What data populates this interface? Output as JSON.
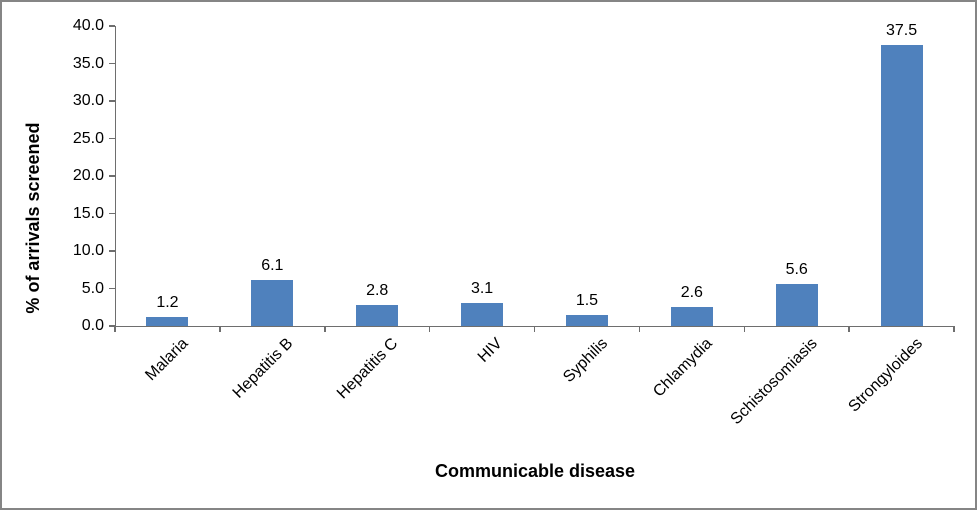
{
  "chart_data": {
    "type": "bar",
    "categories": [
      "Malaria",
      "Hepatitis B",
      "Hepatitis C",
      "HIV",
      "Syphilis",
      "Chlamydia",
      "Schistosomiasis",
      "Strongyloides"
    ],
    "values": [
      1.2,
      6.1,
      2.8,
      3.1,
      1.5,
      2.6,
      5.6,
      37.5
    ],
    "value_labels": [
      "1.2",
      "6.1",
      "2.8",
      "3.1",
      "1.5",
      "2.6",
      "5.6",
      "37.5"
    ],
    "title": "",
    "xlabel": "Communicable disease",
    "ylabel": "% of arrivals screened",
    "ylim": [
      0,
      40
    ],
    "ytick_step": 5,
    "ytick_labels": [
      "0.0",
      "5.0",
      "10.0",
      "15.0",
      "20.0",
      "25.0",
      "30.0",
      "35.0",
      "40.0"
    ],
    "grid": false,
    "legend": false,
    "label_rotation_deg": -45,
    "colors": {
      "bar": "#4F81BD",
      "axis": "#6E6E6E",
      "text": "#000000",
      "frame_border": "#858585",
      "background": "#FFFFFF"
    }
  }
}
